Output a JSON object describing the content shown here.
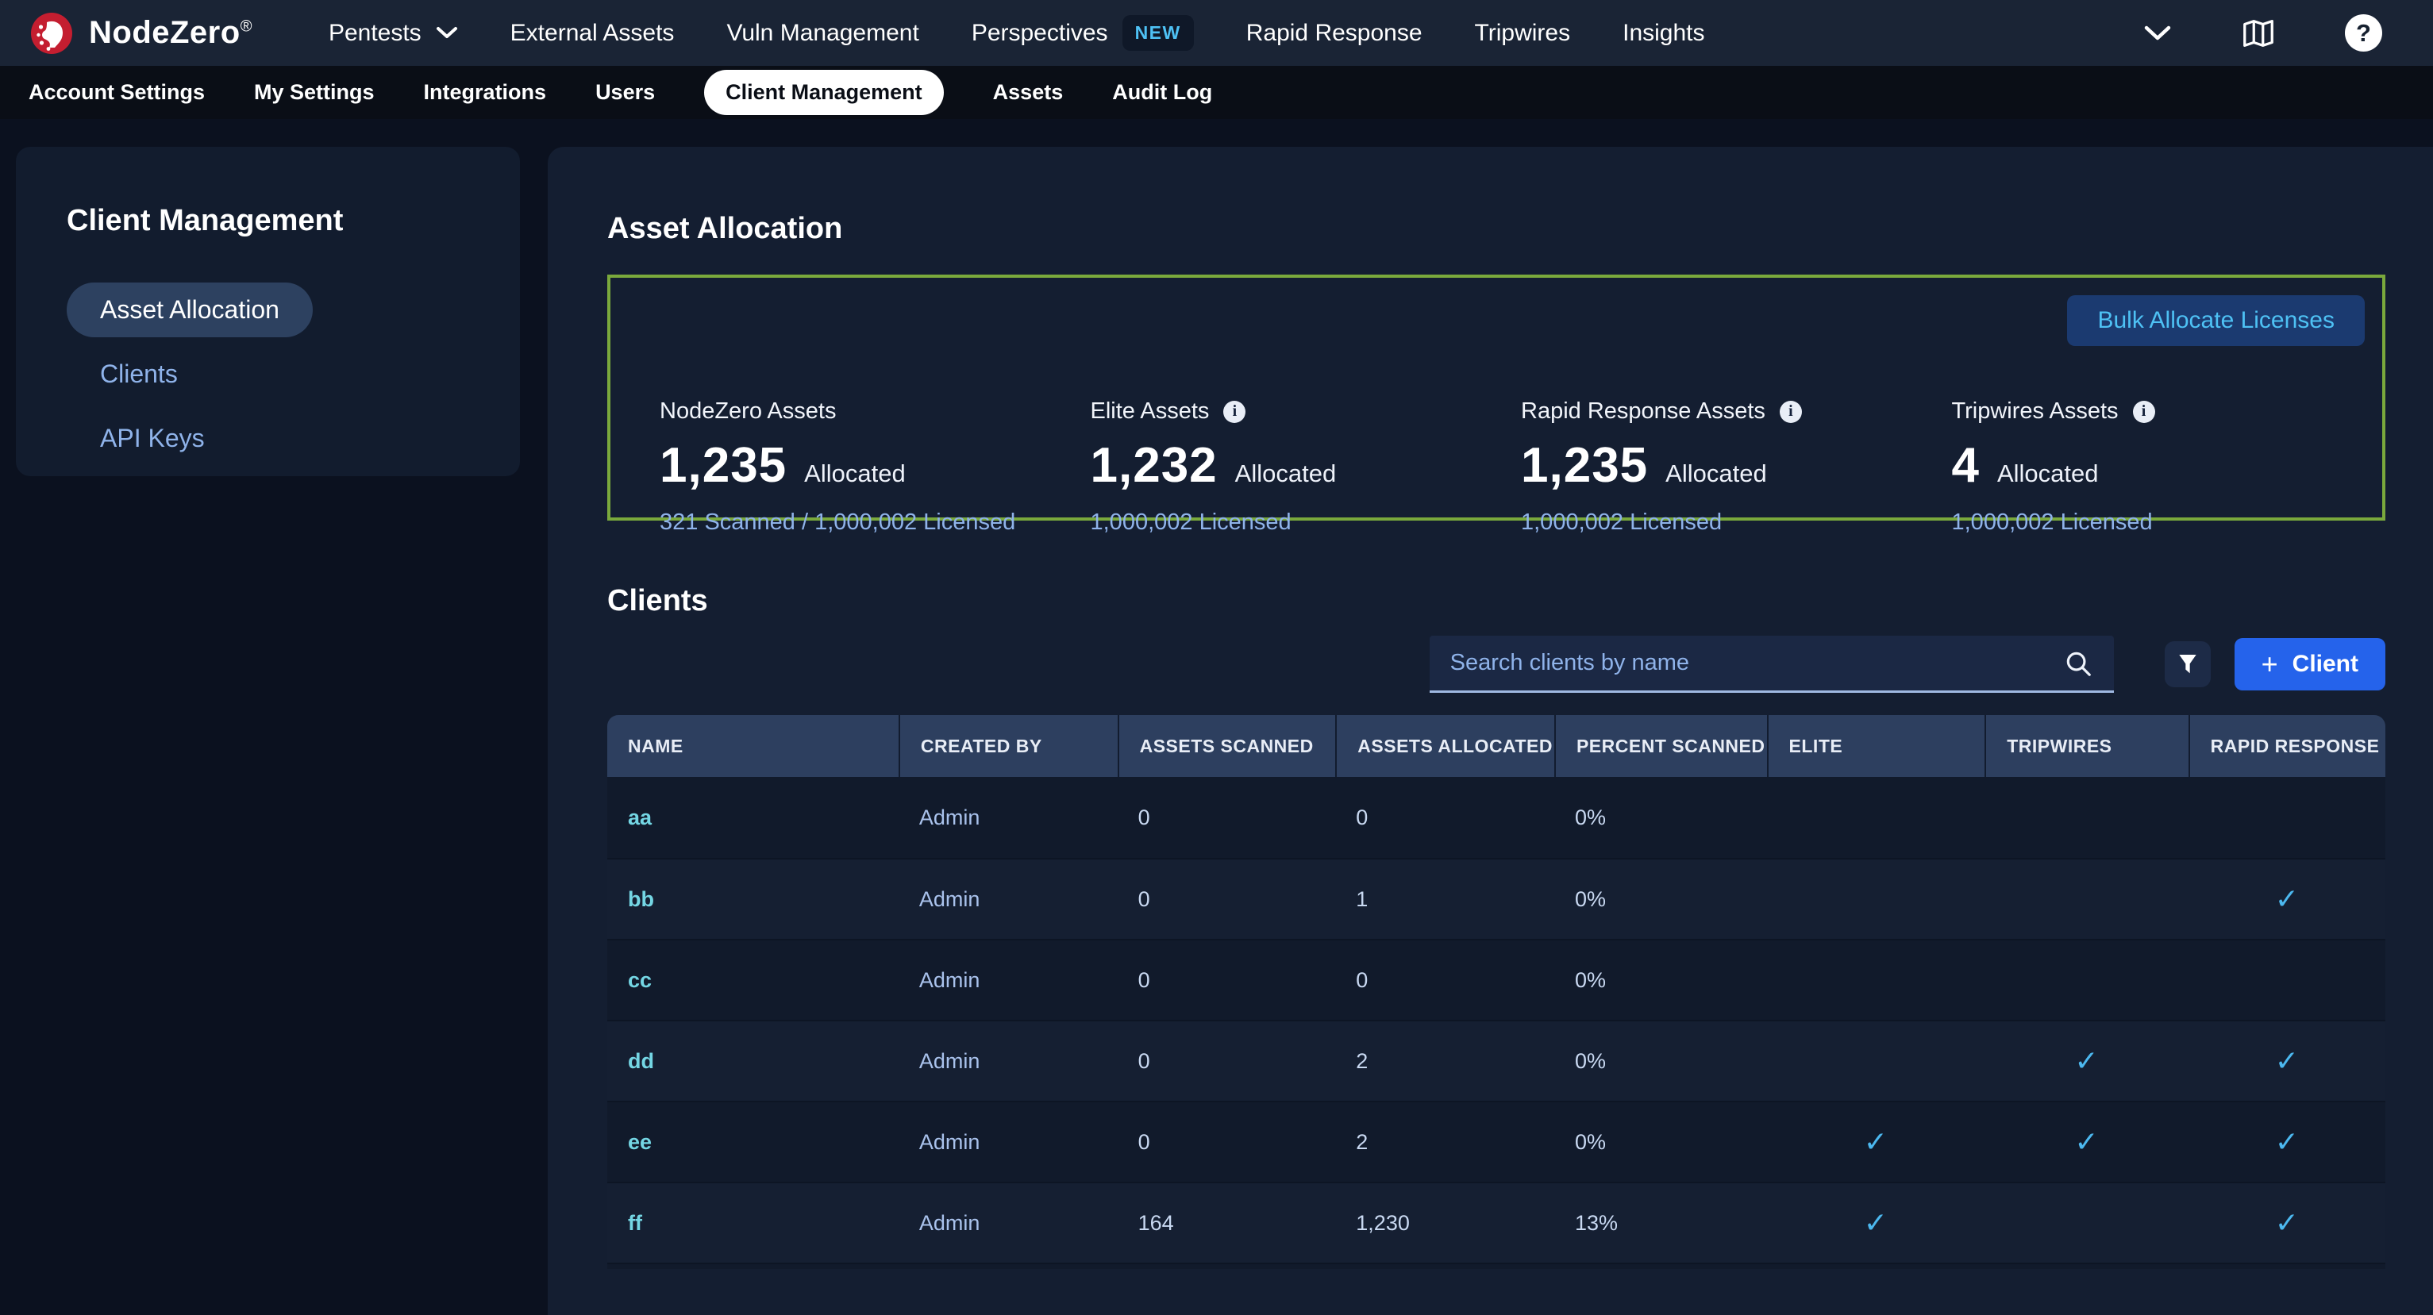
{
  "colors": {
    "topnav_bg": "#1a2435",
    "tabbar_bg": "#0a0e16",
    "page_bg": "#0b111f",
    "panel_bg": "#141e31",
    "card_bg": "#121c2e",
    "pill_bg": "#2d4160",
    "header_bg": "#2d3f5f",
    "row_dark": "#111a2b",
    "row_light": "#151f32",
    "link_blue": "#8fb3ea",
    "light_text": "#cfdcf4",
    "cyan": "#74d6e4",
    "check_blue": "#4cb8ef",
    "badge_blue": "#4ec1f4",
    "green_border": "#7aa93c",
    "bulk_bg": "#1b3a70",
    "bulk_text": "#4ec1f4",
    "search_bg": "#1b2844",
    "search_underline": "#9fb9e2",
    "filter_bg": "#1d2b47",
    "accent_blue": "#2563eb"
  },
  "topnav": {
    "brand": "NodeZero",
    "brand_mark": "®",
    "items": [
      {
        "label": "Pentests",
        "chevron": true
      },
      {
        "label": "External Assets"
      },
      {
        "label": "Vuln Management"
      },
      {
        "label": "Perspectives",
        "badge": "NEW"
      },
      {
        "label": "Rapid Response"
      },
      {
        "label": "Tripwires"
      },
      {
        "label": "Insights"
      }
    ],
    "help_glyph": "?"
  },
  "tabs": {
    "active": "Client Management",
    "items": [
      "Account Settings",
      "My Settings",
      "Integrations",
      "Users",
      "Client Management",
      "Assets",
      "Audit Log"
    ]
  },
  "sidebar": {
    "title": "Client Management",
    "active": "Asset Allocation",
    "items": [
      "Asset Allocation",
      "Clients",
      "API Keys"
    ]
  },
  "asset_allocation": {
    "title": "Asset Allocation",
    "bulk_button_label": "Bulk Allocate Licenses",
    "stats": [
      {
        "label": "NodeZero Assets",
        "info": false,
        "value": "1,235",
        "suffix": "Allocated",
        "detail": "321 Scanned / 1,000,002 Licensed"
      },
      {
        "label": "Elite Assets",
        "info": true,
        "value": "1,232",
        "suffix": "Allocated",
        "detail": "1,000,002 Licensed"
      },
      {
        "label": "Rapid Response Assets",
        "info": true,
        "value": "1,235",
        "suffix": "Allocated",
        "detail": "1,000,002 Licensed"
      },
      {
        "label": "Tripwires Assets",
        "info": true,
        "value": "4",
        "suffix": "Allocated",
        "detail": "1,000,002 Licensed"
      }
    ]
  },
  "clients": {
    "title": "Clients",
    "search_placeholder": "Search clients by name",
    "add_button_label": "Client",
    "table": {
      "columns": [
        "NAME",
        "CREATED BY",
        "ASSETS SCANNED",
        "ASSETS ALLOCATED",
        "PERCENT SCANNED",
        "ELITE",
        "TRIPWIRES",
        "RAPID RESPONSE"
      ],
      "rows": [
        {
          "name": "aa",
          "created_by": "Admin",
          "assets_scanned": "0",
          "assets_allocated": "0",
          "percent_scanned": "0%",
          "elite": false,
          "tripwires": false,
          "rapid_response": false
        },
        {
          "name": "bb",
          "created_by": "Admin",
          "assets_scanned": "0",
          "assets_allocated": "1",
          "percent_scanned": "0%",
          "elite": false,
          "tripwires": false,
          "rapid_response": true
        },
        {
          "name": "cc",
          "created_by": "Admin",
          "assets_scanned": "0",
          "assets_allocated": "0",
          "percent_scanned": "0%",
          "elite": false,
          "tripwires": false,
          "rapid_response": false
        },
        {
          "name": "dd",
          "created_by": "Admin",
          "assets_scanned": "0",
          "assets_allocated": "2",
          "percent_scanned": "0%",
          "elite": false,
          "tripwires": true,
          "rapid_response": true
        },
        {
          "name": "ee",
          "created_by": "Admin",
          "assets_scanned": "0",
          "assets_allocated": "2",
          "percent_scanned": "0%",
          "elite": true,
          "tripwires": true,
          "rapid_response": true
        },
        {
          "name": "ff",
          "created_by": "Admin",
          "assets_scanned": "164",
          "assets_allocated": "1,230",
          "percent_scanned": "13%",
          "elite": true,
          "tripwires": false,
          "rapid_response": true
        }
      ]
    }
  }
}
